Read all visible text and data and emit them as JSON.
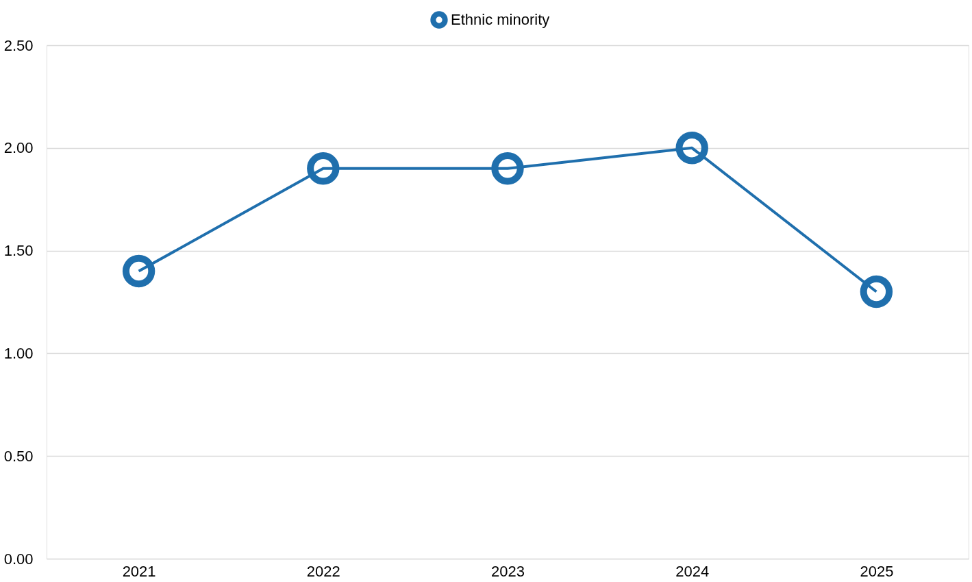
{
  "chart_data": {
    "type": "line",
    "categories": [
      "2021",
      "2022",
      "2023",
      "2024",
      "2025"
    ],
    "series": [
      {
        "name": "Ethnic minority",
        "color": "#1f6fad",
        "values": [
          1.4,
          1.9,
          1.9,
          2.0,
          1.3
        ]
      }
    ],
    "ylim": [
      0,
      2.5
    ],
    "yticks": [
      {
        "value": 0,
        "label": "0.00"
      },
      {
        "value": 0.5,
        "label": "0.50"
      },
      {
        "value": 1,
        "label": "1.00"
      },
      {
        "value": 1.5,
        "label": "1.50"
      },
      {
        "value": 2,
        "label": "2.00"
      },
      {
        "value": 2.5,
        "label": "2.50"
      }
    ],
    "grid": "y",
    "legend": "top",
    "marker": "circle",
    "line_style": "solid"
  }
}
